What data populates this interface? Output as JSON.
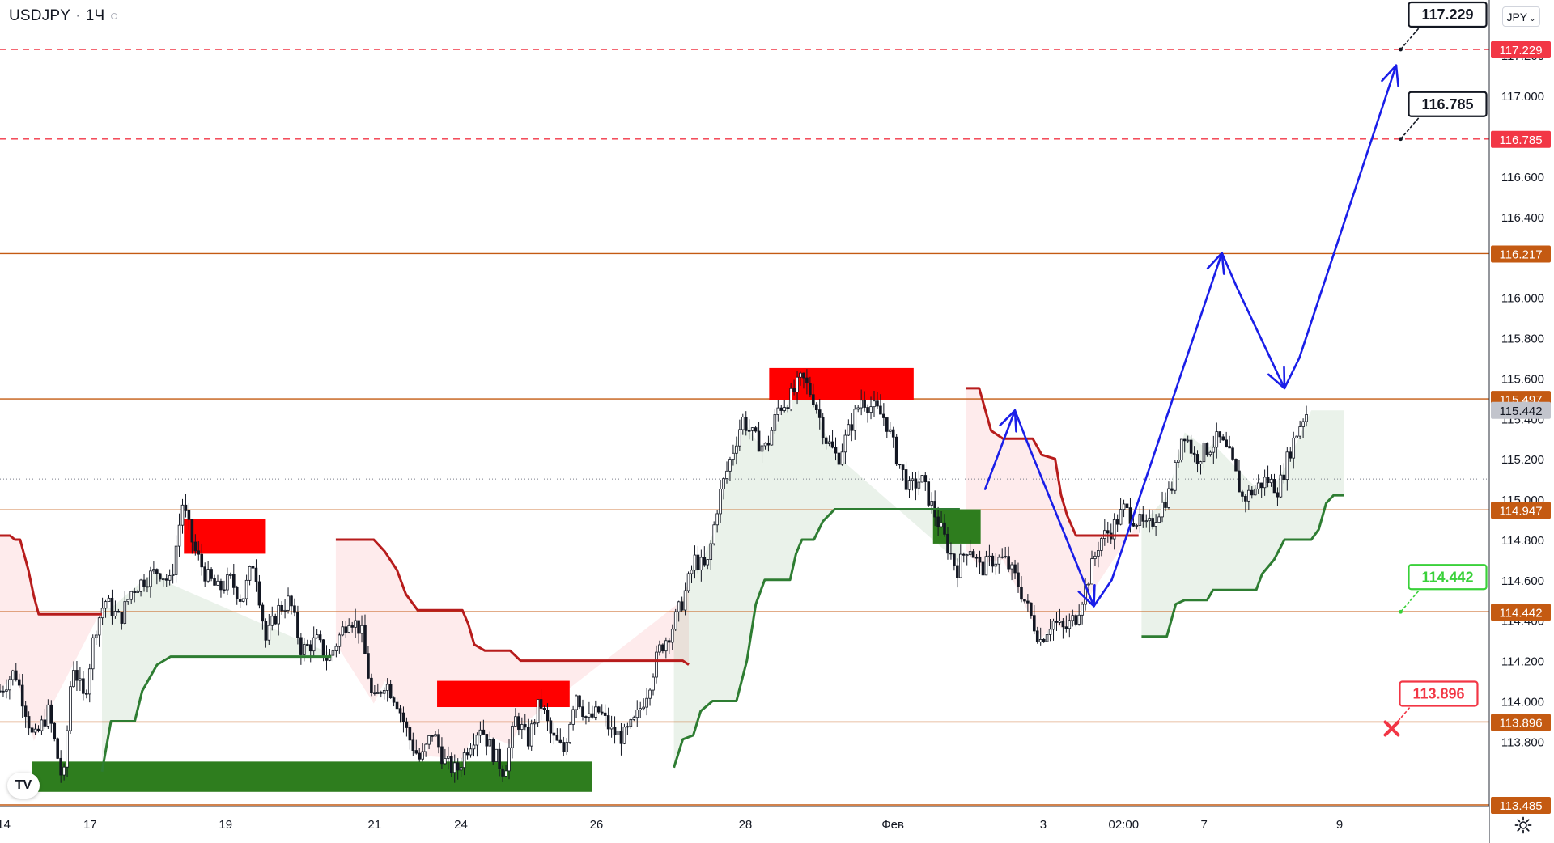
{
  "header": {
    "symbol": "USDJPY",
    "interval": "1Ч"
  },
  "currency_button": {
    "label": "JPY",
    "icon": "chevron-down-icon"
  },
  "logo": {
    "icon": "tradingview-logo-icon",
    "text": "TV"
  },
  "settings": {
    "icon": "gear-icon"
  },
  "colors": {
    "target_line": "#f23645",
    "level_line": "#c45a12",
    "support_line": "#2e7d32",
    "resistance_line": "#b71c1c",
    "forecast_arrow": "#1a1ee8",
    "supply_zone": "#ff0000",
    "demand_zone": "#2e7d1e",
    "candles": "#131722"
  },
  "chart_data": {
    "type": "candlestick",
    "symbol": "USDJPY",
    "y_ticks": [
      "113.800",
      "114.000",
      "114.200",
      "114.400",
      "114.600",
      "114.800",
      "115.000",
      "115.200",
      "115.400",
      "115.600",
      "115.800",
      "116.000",
      "116.200",
      "116.400",
      "116.600",
      "117.000",
      "117.200"
    ],
    "x_ticks": [
      "14",
      "17",
      "19",
      "21",
      "24",
      "26",
      "28",
      "Фев",
      "3",
      "02:00",
      "7",
      "9"
    ],
    "ylim": [
      113.45,
      117.4
    ],
    "price_tags": [
      {
        "value": "117.229",
        "kind": "target"
      },
      {
        "value": "116.785",
        "kind": "target"
      },
      {
        "value": "116.217",
        "kind": "level"
      },
      {
        "value": "115.497",
        "kind": "level"
      },
      {
        "value": "115.442",
        "kind": "current"
      },
      {
        "value": "114.947",
        "kind": "level"
      },
      {
        "value": "114.442",
        "kind": "level"
      },
      {
        "value": "113.896",
        "kind": "level"
      },
      {
        "value": "113.485",
        "kind": "level"
      }
    ],
    "callouts": [
      {
        "value": "117.229",
        "kind": "target"
      },
      {
        "value": "116.785",
        "kind": "target"
      },
      {
        "value": "114.442",
        "kind": "entry"
      },
      {
        "value": "113.896",
        "kind": "stop"
      }
    ],
    "horizontal_levels": [
      116.217,
      115.497,
      114.947,
      114.442,
      113.896,
      113.485
    ],
    "target_levels": [
      117.229,
      116.785
    ],
    "last_price": 115.442,
    "forecast_path": [
      {
        "t": 0.6615,
        "p": 115.05
      },
      {
        "t": 0.6815,
        "p": 115.44
      },
      {
        "t": 0.6915,
        "p": 115.25
      },
      {
        "t": 0.7345,
        "p": 114.47
      },
      {
        "t": 0.7465,
        "p": 114.6
      },
      {
        "t": 0.8205,
        "p": 116.22
      },
      {
        "t": 0.8305,
        "p": 116.05
      },
      {
        "t": 0.8625,
        "p": 115.55
      },
      {
        "t": 0.8725,
        "p": 115.7
      },
      {
        "t": 0.9375,
        "p": 117.15
      }
    ],
    "zones": [
      {
        "type": "supply",
        "t0": 0.1235,
        "t1": 0.1785,
        "p0": 114.73,
        "p1": 114.9
      },
      {
        "type": "supply",
        "t0": 0.2935,
        "t1": 0.3825,
        "p0": 113.97,
        "p1": 114.1
      },
      {
        "type": "supply",
        "t0": 0.5165,
        "t1": 0.6135,
        "p0": 115.49,
        "p1": 115.65
      },
      {
        "type": "demand",
        "t0": 0.0215,
        "t1": 0.3975,
        "p0": 113.55,
        "p1": 113.7
      },
      {
        "type": "demand",
        "t0": 0.6265,
        "t1": 0.6585,
        "p0": 114.78,
        "p1": 114.95
      }
    ],
    "resistance_line": [
      {
        "t": 0.0,
        "p": 114.82
      },
      {
        "t": 0.0067,
        "p": 114.82
      },
      {
        "t": 0.01,
        "p": 114.8
      },
      {
        "t": 0.0135,
        "p": 114.8
      },
      {
        "t": 0.019,
        "p": 114.65
      },
      {
        "t": 0.0227,
        "p": 114.52
      },
      {
        "t": 0.026,
        "p": 114.43
      },
      {
        "t": 0.0685,
        "p": 114.43
      },
      null,
      {
        "t": 0.2255,
        "p": 114.8
      },
      {
        "t": 0.251,
        "p": 114.8
      },
      {
        "t": 0.2585,
        "p": 114.74
      },
      {
        "t": 0.2665,
        "p": 114.65
      },
      {
        "t": 0.2725,
        "p": 114.53
      },
      {
        "t": 0.2805,
        "p": 114.45
      },
      {
        "t": 0.3105,
        "p": 114.45
      },
      {
        "t": 0.3145,
        "p": 114.38
      },
      {
        "t": 0.3185,
        "p": 114.28
      },
      {
        "t": 0.3255,
        "p": 114.25
      },
      {
        "t": 0.3425,
        "p": 114.25
      },
      {
        "t": 0.3495,
        "p": 114.2
      },
      {
        "t": 0.4585,
        "p": 114.2
      },
      {
        "t": 0.4625,
        "p": 114.18
      },
      null,
      {
        "t": 0.6485,
        "p": 115.55
      },
      {
        "t": 0.6575,
        "p": 115.55
      },
      {
        "t": 0.6655,
        "p": 115.34
      },
      {
        "t": 0.6735,
        "p": 115.3
      },
      {
        "t": 0.6935,
        "p": 115.3
      },
      {
        "t": 0.6995,
        "p": 115.22
      },
      {
        "t": 0.7085,
        "p": 115.2
      },
      {
        "t": 0.7125,
        "p": 115.02
      },
      {
        "t": 0.7165,
        "p": 114.92
      },
      {
        "t": 0.7225,
        "p": 114.82
      },
      {
        "t": 0.7645,
        "p": 114.82
      }
    ],
    "support_line": [
      {
        "t": 0.0685,
        "p": 113.65
      },
      {
        "t": 0.0745,
        "p": 113.9
      },
      {
        "t": 0.0905,
        "p": 113.9
      },
      {
        "t": 0.0955,
        "p": 114.05
      },
      {
        "t": 0.1055,
        "p": 114.18
      },
      {
        "t": 0.1145,
        "p": 114.22
      },
      {
        "t": 0.2225,
        "p": 114.22
      },
      null,
      {
        "t": 0.4525,
        "p": 113.67
      },
      {
        "t": 0.4585,
        "p": 113.81
      },
      {
        "t": 0.4655,
        "p": 113.83
      },
      {
        "t": 0.4705,
        "p": 113.95
      },
      {
        "t": 0.4785,
        "p": 114.0
      },
      {
        "t": 0.4945,
        "p": 114.0
      },
      {
        "t": 0.5015,
        "p": 114.2
      },
      {
        "t": 0.5075,
        "p": 114.48
      },
      {
        "t": 0.5135,
        "p": 114.6
      },
      {
        "t": 0.5305,
        "p": 114.6
      },
      {
        "t": 0.5345,
        "p": 114.73
      },
      {
        "t": 0.5385,
        "p": 114.8
      },
      {
        "t": 0.5465,
        "p": 114.8
      },
      {
        "t": 0.5525,
        "p": 114.89
      },
      {
        "t": 0.5605,
        "p": 114.95
      },
      {
        "t": 0.6445,
        "p": 114.95
      },
      null,
      {
        "t": 0.7665,
        "p": 114.32
      },
      {
        "t": 0.7835,
        "p": 114.32
      },
      {
        "t": 0.7895,
        "p": 114.48
      },
      {
        "t": 0.7955,
        "p": 114.5
      },
      {
        "t": 0.8105,
        "p": 114.5
      },
      {
        "t": 0.8145,
        "p": 114.55
      },
      {
        "t": 0.8435,
        "p": 114.55
      },
      {
        "t": 0.8475,
        "p": 114.63
      },
      {
        "t": 0.8555,
        "p": 114.7
      },
      {
        "t": 0.8625,
        "p": 114.8
      },
      {
        "t": 0.8805,
        "p": 114.8
      },
      {
        "t": 0.8855,
        "p": 114.85
      },
      {
        "t": 0.8905,
        "p": 114.98
      },
      {
        "t": 0.8955,
        "p": 115.02
      },
      {
        "t": 0.9025,
        "p": 115.02
      }
    ],
    "series": [
      {
        "name": "close",
        "points": [
          {
            "t": 0.0,
            "p": 114.05
          },
          {
            "t": 0.01,
            "p": 114.15
          },
          {
            "t": 0.0175,
            "p": 113.95
          },
          {
            "t": 0.0225,
            "p": 113.8
          },
          {
            "t": 0.0325,
            "p": 113.95
          },
          {
            "t": 0.0425,
            "p": 113.58
          },
          {
            "t": 0.0485,
            "p": 114.2
          },
          {
            "t": 0.0565,
            "p": 114.0
          },
          {
            "t": 0.0635,
            "p": 114.35
          },
          {
            "t": 0.0705,
            "p": 114.5
          },
          {
            "t": 0.0805,
            "p": 114.4
          },
          {
            "t": 0.0885,
            "p": 114.55
          },
          {
            "t": 0.0965,
            "p": 114.6
          },
          {
            "t": 0.1065,
            "p": 114.65
          },
          {
            "t": 0.1145,
            "p": 114.58
          },
          {
            "t": 0.1225,
            "p": 114.98
          },
          {
            "t": 0.1305,
            "p": 114.75
          },
          {
            "t": 0.1385,
            "p": 114.62
          },
          {
            "t": 0.1465,
            "p": 114.55
          },
          {
            "t": 0.1545,
            "p": 114.6
          },
          {
            "t": 0.1625,
            "p": 114.5
          },
          {
            "t": 0.1705,
            "p": 114.7
          },
          {
            "t": 0.1785,
            "p": 114.3
          },
          {
            "t": 0.1865,
            "p": 114.45
          },
          {
            "t": 0.1945,
            "p": 114.5
          },
          {
            "t": 0.2025,
            "p": 114.25
          },
          {
            "t": 0.2125,
            "p": 114.3
          },
          {
            "t": 0.2205,
            "p": 114.2
          },
          {
            "t": 0.2265,
            "p": 114.3
          },
          {
            "t": 0.2345,
            "p": 114.42
          },
          {
            "t": 0.2425,
            "p": 114.35
          },
          {
            "t": 0.2505,
            "p": 113.98
          },
          {
            "t": 0.2585,
            "p": 114.1
          },
          {
            "t": 0.2665,
            "p": 114.0
          },
          {
            "t": 0.2745,
            "p": 113.82
          },
          {
            "t": 0.2825,
            "p": 113.7
          },
          {
            "t": 0.2905,
            "p": 113.85
          },
          {
            "t": 0.2985,
            "p": 113.7
          },
          {
            "t": 0.3065,
            "p": 113.65
          },
          {
            "t": 0.3145,
            "p": 113.78
          },
          {
            "t": 0.3225,
            "p": 113.88
          },
          {
            "t": 0.3305,
            "p": 113.75
          },
          {
            "t": 0.3385,
            "p": 113.65
          },
          {
            "t": 0.3465,
            "p": 113.92
          },
          {
            "t": 0.3545,
            "p": 113.8
          },
          {
            "t": 0.3625,
            "p": 114.0
          },
          {
            "t": 0.3705,
            "p": 113.82
          },
          {
            "t": 0.3785,
            "p": 113.75
          },
          {
            "t": 0.3865,
            "p": 114.05
          },
          {
            "t": 0.3945,
            "p": 113.9
          },
          {
            "t": 0.4025,
            "p": 113.95
          },
          {
            "t": 0.4105,
            "p": 113.85
          },
          {
            "t": 0.4185,
            "p": 113.82
          },
          {
            "t": 0.4265,
            "p": 113.9
          },
          {
            "t": 0.4345,
            "p": 114.05
          },
          {
            "t": 0.4425,
            "p": 114.25
          },
          {
            "t": 0.4505,
            "p": 114.35
          },
          {
            "t": 0.4585,
            "p": 114.5
          },
          {
            "t": 0.4665,
            "p": 114.7
          },
          {
            "t": 0.4745,
            "p": 114.65
          },
          {
            "t": 0.4825,
            "p": 115.0
          },
          {
            "t": 0.4905,
            "p": 115.2
          },
          {
            "t": 0.4985,
            "p": 115.4
          },
          {
            "t": 0.5065,
            "p": 115.3
          },
          {
            "t": 0.5145,
            "p": 115.25
          },
          {
            "t": 0.5225,
            "p": 115.45
          },
          {
            "t": 0.5305,
            "p": 115.5
          },
          {
            "t": 0.5385,
            "p": 115.6
          },
          {
            "t": 0.5465,
            "p": 115.5
          },
          {
            "t": 0.5545,
            "p": 115.3
          },
          {
            "t": 0.5625,
            "p": 115.2
          },
          {
            "t": 0.5705,
            "p": 115.35
          },
          {
            "t": 0.5785,
            "p": 115.5
          },
          {
            "t": 0.5865,
            "p": 115.45
          },
          {
            "t": 0.5945,
            "p": 115.4
          },
          {
            "t": 0.6025,
            "p": 115.2
          },
          {
            "t": 0.6105,
            "p": 115.05
          },
          {
            "t": 0.6185,
            "p": 115.1
          },
          {
            "t": 0.6265,
            "p": 114.95
          },
          {
            "t": 0.6345,
            "p": 114.8
          },
          {
            "t": 0.6425,
            "p": 114.65
          },
          {
            "t": 0.6505,
            "p": 114.78
          },
          {
            "t": 0.6585,
            "p": 114.65
          },
          {
            "t": 0.6665,
            "p": 114.7
          },
          {
            "t": 0.6745,
            "p": 114.7
          },
          {
            "t": 0.6825,
            "p": 114.6
          },
          {
            "t": 0.6905,
            "p": 114.45
          },
          {
            "t": 0.6985,
            "p": 114.3
          },
          {
            "t": 0.7065,
            "p": 114.4
          },
          {
            "t": 0.7145,
            "p": 114.35
          },
          {
            "t": 0.7225,
            "p": 114.42
          },
          {
            "t": 0.7305,
            "p": 114.6
          },
          {
            "t": 0.7385,
            "p": 114.8
          },
          {
            "t": 0.7465,
            "p": 114.85
          },
          {
            "t": 0.7545,
            "p": 114.95
          },
          {
            "t": 0.7625,
            "p": 114.9
          },
          {
            "t": 0.7705,
            "p": 114.85
          },
          {
            "t": 0.7785,
            "p": 114.95
          },
          {
            "t": 0.7865,
            "p": 115.05
          },
          {
            "t": 0.7945,
            "p": 115.35
          },
          {
            "t": 0.8025,
            "p": 115.2
          },
          {
            "t": 0.8105,
            "p": 115.25
          },
          {
            "t": 0.8185,
            "p": 115.3
          },
          {
            "t": 0.8265,
            "p": 115.2
          },
          {
            "t": 0.8345,
            "p": 115.0
          },
          {
            "t": 0.8425,
            "p": 115.05
          },
          {
            "t": 0.8505,
            "p": 115.1
          },
          {
            "t": 0.8585,
            "p": 115.05
          },
          {
            "t": 0.8665,
            "p": 115.25
          },
          {
            "t": 0.8745,
            "p": 115.4
          },
          {
            "t": 0.8785,
            "p": 115.44
          }
        ]
      }
    ]
  }
}
